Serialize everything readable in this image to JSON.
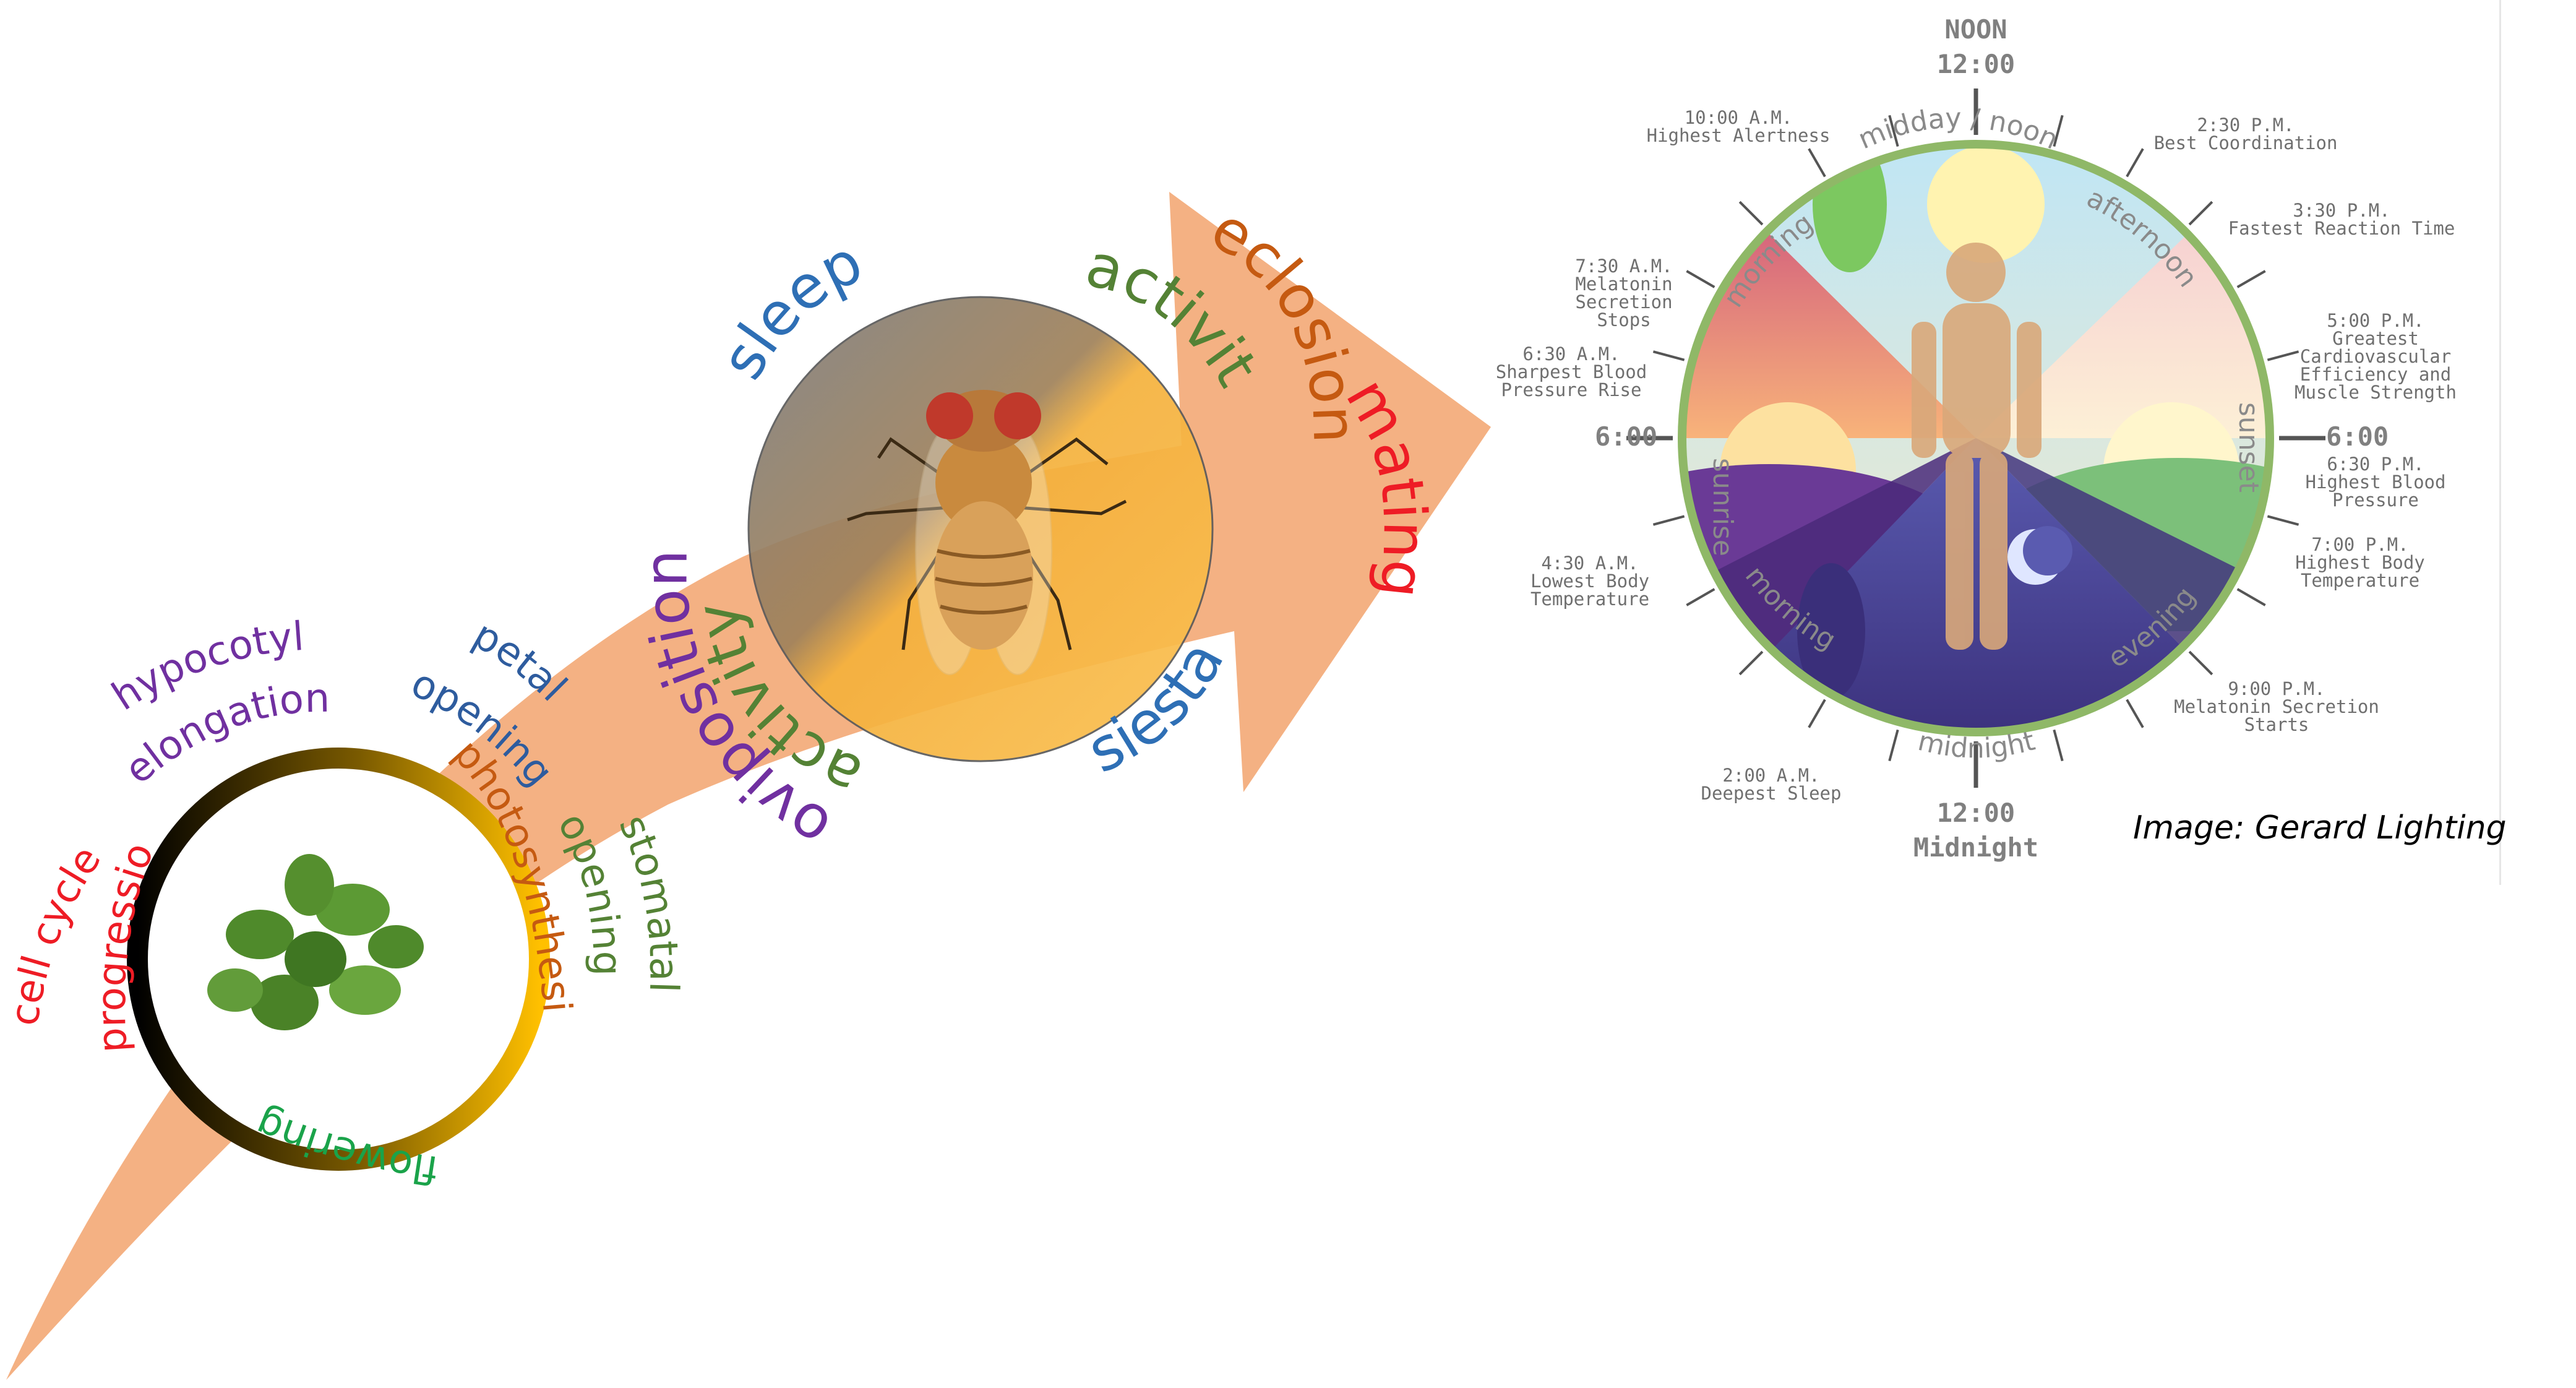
{
  "plant": {
    "labels": {
      "cell_cycle": "cell cycle",
      "progression": "progression",
      "hypocotyl": "hypocotyl",
      "elongation": "elongation",
      "petal": "petal",
      "opening_petal": "opening",
      "photosynthesis": "photosynthesis",
      "stomatal": "stomatal",
      "opening_stomatal": "opening",
      "flowering": "flowering"
    },
    "colors": {
      "cell_cycle": "#ee1c25",
      "hypocotyl": "#7030a0",
      "petal": "#2e5c9e",
      "photosynthesis": "#c55a11",
      "stomatal": "#548235",
      "flowering": "#1aa34a"
    }
  },
  "fly": {
    "labels": {
      "sleep": "sleep",
      "activity_top": "activity",
      "eclosion": "eclosion",
      "mating": "mating",
      "oviposition": "oviposition",
      "activity_inner": "activity",
      "siesta": "siesta"
    },
    "colors": {
      "sleep": "#2e6fb5",
      "activity": "#548235",
      "eclosion": "#c55a11",
      "mating": "#ee1c25",
      "oviposition": "#7030a0",
      "siesta": "#2e6fb5"
    }
  },
  "arrow_color": "#f4b183",
  "clock": {
    "noon": "NOON",
    "noon_time": "12:00",
    "midnight_time": "12:00",
    "midnight": "Midnight",
    "six_left": "6:00",
    "six_right": "6:00",
    "segments": {
      "midday": "midday / noon",
      "afternoon": "afternoon",
      "morning_top": "morning",
      "sunrise": "sunrise",
      "sunset": "sunset",
      "morning_bottom": "morning",
      "evening": "evening",
      "midnight": "midnight"
    },
    "notes": {
      "n1000": [
        "10:00 A.M.",
        "Highest Alertness"
      ],
      "n1430": [
        "2:30 P.M.",
        "Best Coordination"
      ],
      "n1530": [
        "3:30 P.M.",
        "Fastest Reaction Time"
      ],
      "n0730": [
        "7:30 A.M.",
        "Melatonin",
        "Secretion",
        "Stops"
      ],
      "n1700": [
        "5:00 P.M.",
        "Greatest",
        "Cardiovascular",
        "Efficiency and",
        "Muscle Strength"
      ],
      "n0630": [
        "6:30 A.M.",
        "Sharpest Blood",
        "Pressure Rise"
      ],
      "n1830": [
        "6:30 P.M.",
        "Highest Blood",
        "Pressure"
      ],
      "n0430": [
        "4:30 A.M.",
        "Lowest Body",
        "Temperature"
      ],
      "n1900": [
        "7:00 P.M.",
        "Highest Body",
        "Temperature"
      ],
      "n2100": [
        "9:00 P.M.",
        "Melatonin Secretion",
        "Starts"
      ],
      "n0200": [
        "2:00 A.M.",
        "Deepest Sleep"
      ]
    }
  },
  "credit": "Image: Gerard Lighting"
}
